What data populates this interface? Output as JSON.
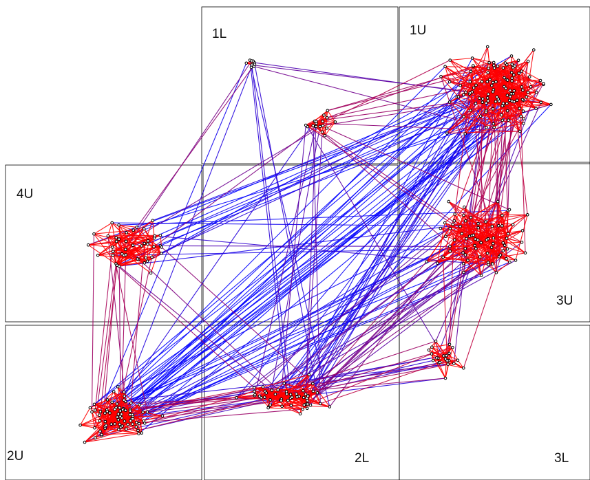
{
  "regions": [
    {
      "id": "1L",
      "label": "1L"
    },
    {
      "id": "1U",
      "label": "1U"
    },
    {
      "id": "4U",
      "label": "4U"
    },
    {
      "id": "3U",
      "label": "3U"
    },
    {
      "id": "2U",
      "label": "2U"
    },
    {
      "id": "2L",
      "label": "2L"
    },
    {
      "id": "3L",
      "label": "3L"
    }
  ],
  "colors": {
    "background": "#ffffff",
    "frame": "#000000",
    "edge_near": "#ff0000",
    "edge_far": "#0000ff",
    "node_fill": "#ffffff",
    "node_stroke": "#000000"
  }
}
